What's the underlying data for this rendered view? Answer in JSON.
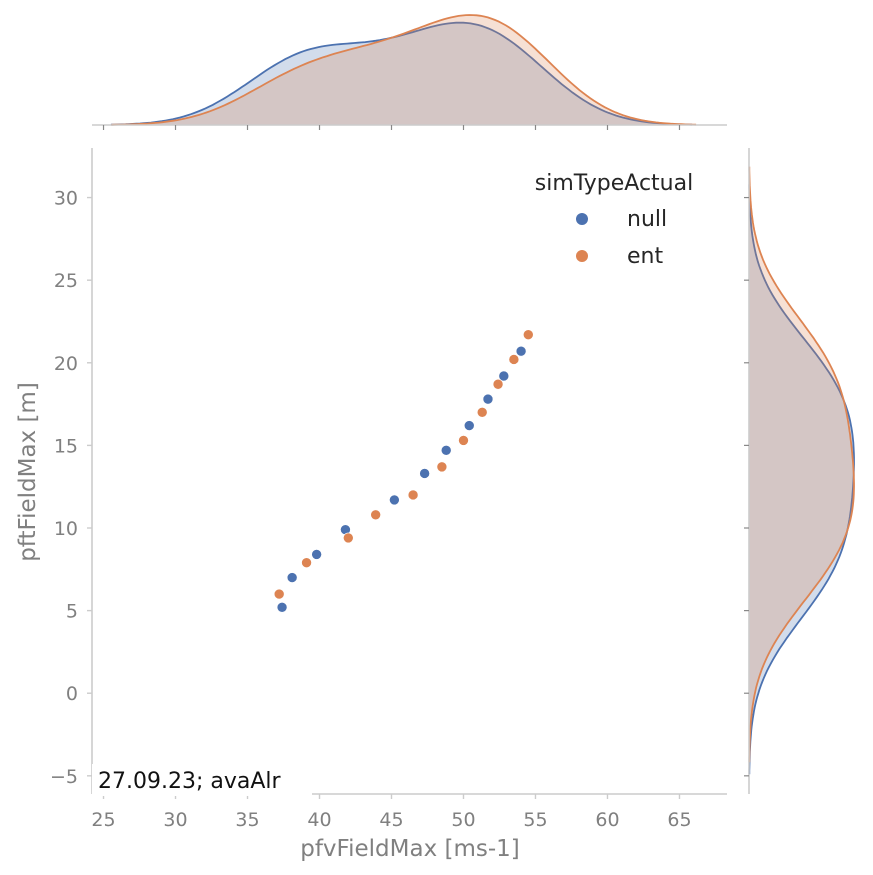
{
  "chart_data": {
    "type": "scatter",
    "subtype": "jointplot with kde marginals",
    "xlabel": "pfvFieldMax [ms-1]",
    "ylabel": "pftFieldMax [m]",
    "xlim": [
      24.2,
      68.3
    ],
    "ylim": [
      -6.1,
      33.0
    ],
    "xticks": [
      25,
      30,
      35,
      40,
      45,
      50,
      55,
      60,
      65
    ],
    "yticks": [
      -5,
      0,
      5,
      10,
      15,
      20,
      25,
      30
    ],
    "xtick_labels": [
      "25",
      "30",
      "35",
      "40",
      "45",
      "50",
      "55",
      "60",
      "65"
    ],
    "ytick_labels": [
      "−5",
      "0",
      "5",
      "10",
      "15",
      "20",
      "25",
      "30"
    ],
    "grid": false,
    "legend": {
      "title": "simTypeActual",
      "placement": "upper-right",
      "entries": [
        "null",
        "ent"
      ]
    },
    "annotation": "27.09.23; avaAlr",
    "series": [
      {
        "name": "null",
        "color": "#4c72b0",
        "points": [
          [
            37.4,
            5.2
          ],
          [
            38.1,
            7.0
          ],
          [
            39.8,
            8.4
          ],
          [
            41.8,
            9.9
          ],
          [
            45.2,
            11.7
          ],
          [
            47.3,
            13.3
          ],
          [
            48.8,
            14.7
          ],
          [
            50.4,
            16.2
          ],
          [
            51.7,
            17.8
          ],
          [
            52.8,
            19.2
          ],
          [
            54.0,
            20.7
          ]
        ]
      },
      {
        "name": "ent",
        "color": "#dd8452",
        "points": [
          [
            37.2,
            6.0
          ],
          [
            39.1,
            7.9
          ],
          [
            42.0,
            9.4
          ],
          [
            43.9,
            10.8
          ],
          [
            46.5,
            12.0
          ],
          [
            48.5,
            13.7
          ],
          [
            50.0,
            15.3
          ],
          [
            51.3,
            17.0
          ],
          [
            52.4,
            18.7
          ],
          [
            53.5,
            20.2
          ],
          [
            54.5,
            21.7
          ]
        ]
      }
    ]
  }
}
